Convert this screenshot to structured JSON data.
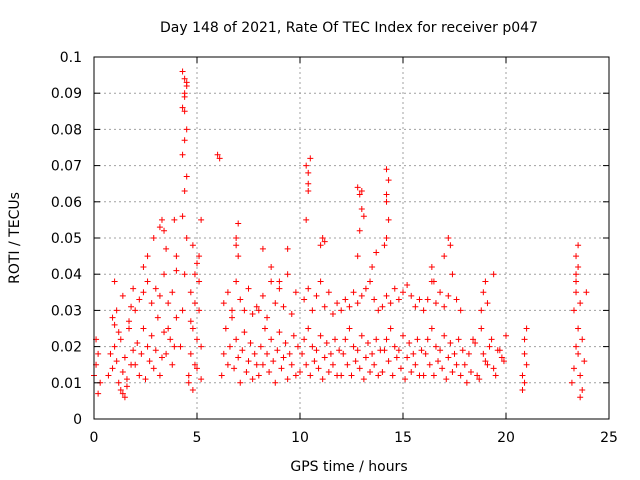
{
  "chart_data": {
    "type": "scatter",
    "title": "Day 148 of 2021, Rate Of TEC Index for receiver p047",
    "xlabel": "GPS time / hours",
    "ylabel": "ROTI / TECUs",
    "xlim": [
      0,
      25
    ],
    "ylim": [
      0,
      0.1
    ],
    "x_ticks": [
      "0",
      "5",
      "10",
      "15",
      "20",
      "25"
    ],
    "y_ticks": [
      "0",
      "0.01",
      "0.02",
      "0.03",
      "0.04",
      "0.05",
      "0.06",
      "0.07",
      "0.08",
      "0.09",
      "0.1"
    ],
    "x_tick_values": [
      0,
      5,
      10,
      15,
      20,
      25
    ],
    "y_tick_values": [
      0,
      0.01,
      0.02,
      0.03,
      0.04,
      0.05,
      0.06,
      0.07,
      0.08,
      0.09,
      0.1
    ],
    "grid": true,
    "marker": "plus",
    "marker_color": "#ff0000",
    "series": [
      {
        "x": [
          0.0,
          0.1,
          0.2,
          0.3,
          0.1,
          0.2,
          0.7,
          0.8,
          0.9,
          1.0,
          1.1,
          1.2,
          1.3,
          1.4,
          1.5,
          1.6,
          1.7,
          1.8,
          1.9,
          0.9,
          1.0,
          1.1,
          1.2,
          1.3,
          1.4,
          1.5,
          1.6,
          1.7,
          1.8,
          2.0,
          2.1,
          2.2,
          2.3,
          2.4,
          2.5,
          2.6,
          2.7,
          2.8,
          2.9,
          3.0,
          3.1,
          3.2,
          3.3,
          3.4,
          2.0,
          2.2,
          2.4,
          2.6,
          2.8,
          3.0,
          3.2,
          3.4,
          1.0,
          1.4,
          1.9,
          2.4,
          2.6,
          2.9,
          3.2,
          3.3,
          3.4,
          3.5,
          3.5,
          3.6,
          3.7,
          3.8,
          3.9,
          4.0,
          3.6,
          3.8,
          4.0,
          3.9,
          4.0,
          4.2,
          4.3,
          4.4,
          4.5,
          4.3,
          4.4,
          4.5,
          4.3,
          4.4,
          4.5,
          4.4,
          4.3,
          4.4,
          4.5,
          4.4,
          4.3,
          4.5,
          4.4,
          4.6,
          4.7,
          4.8,
          4.9,
          5.0,
          5.1,
          5.2,
          4.7,
          4.9,
          5.1,
          4.8,
          5.0,
          5.2,
          4.6,
          4.8,
          5.0,
          5.2,
          4.7,
          4.9,
          5.1,
          6.0,
          6.1,
          6.2,
          6.3,
          6.4,
          6.5,
          6.6,
          6.7,
          6.8,
          6.9,
          7.0,
          7.1,
          7.2,
          7.3,
          7.4,
          7.5,
          7.6,
          7.7,
          7.8,
          7.9,
          6.3,
          6.5,
          6.7,
          6.9,
          7.1,
          7.3,
          7.5,
          7.7,
          7.9,
          6.9,
          7.0,
          7.0,
          6.9,
          8.0,
          8.1,
          8.2,
          8.3,
          8.4,
          8.5,
          8.6,
          8.7,
          8.8,
          8.9,
          9.0,
          9.1,
          9.2,
          9.3,
          9.4,
          9.5,
          9.6,
          9.7,
          9.8,
          9.9,
          8.0,
          8.2,
          8.4,
          8.6,
          8.8,
          9.0,
          9.2,
          9.4,
          9.6,
          9.8,
          8.2,
          8.6,
          9.0,
          9.4,
          10.0,
          10.1,
          10.2,
          10.3,
          10.4,
          10.5,
          10.6,
          10.7,
          10.8,
          10.9,
          11.0,
          11.1,
          11.2,
          11.3,
          11.4,
          11.5,
          11.6,
          11.7,
          11.8,
          11.9,
          10.2,
          10.4,
          10.6,
          10.8,
          11.0,
          11.2,
          11.4,
          11.6,
          11.8,
          10.3,
          10.4,
          10.4,
          10.3,
          10.5,
          10.4,
          11.0,
          11.1,
          11.2,
          12.0,
          12.1,
          12.2,
          12.3,
          12.4,
          12.5,
          12.6,
          12.7,
          12.8,
          12.9,
          13.0,
          13.1,
          13.2,
          13.3,
          13.4,
          13.5,
          13.6,
          13.7,
          13.8,
          13.9,
          12.0,
          12.2,
          12.4,
          12.6,
          12.8,
          13.0,
          13.2,
          13.4,
          13.6,
          13.8,
          12.8,
          12.9,
          13.0,
          12.9,
          12.8,
          13.0,
          13.5,
          13.7,
          13.1,
          14.0,
          14.1,
          14.2,
          14.3,
          14.4,
          14.5,
          14.6,
          14.7,
          14.8,
          14.9,
          15.0,
          15.1,
          15.2,
          15.3,
          15.4,
          15.5,
          15.6,
          15.7,
          15.8,
          15.9,
          14.0,
          14.2,
          14.4,
          14.6,
          14.8,
          15.0,
          15.2,
          15.4,
          15.6,
          15.8,
          14.2,
          14.3,
          14.2,
          14.3,
          14.2,
          14.1,
          14.2,
          16.0,
          16.1,
          16.2,
          16.3,
          16.4,
          16.5,
          16.6,
          16.7,
          16.8,
          16.9,
          17.0,
          17.1,
          17.2,
          17.3,
          17.4,
          17.5,
          17.6,
          17.7,
          17.8,
          17.9,
          16.0,
          16.2,
          16.4,
          16.6,
          16.8,
          17.0,
          17.2,
          17.4,
          17.6,
          17.8,
          16.4,
          16.5,
          17.0,
          17.2,
          17.3,
          18.0,
          18.2,
          18.4,
          18.6,
          18.8,
          19.0,
          19.2,
          19.4,
          19.6,
          19.8,
          20.0,
          18.1,
          18.3,
          18.5,
          18.7,
          18.9,
          19.1,
          19.3,
          19.5,
          19.7,
          19.9,
          18.8,
          18.9,
          19.0,
          19.1,
          19.4,
          20.8,
          20.9,
          21.0,
          20.9,
          20.8,
          21.0,
          20.9,
          23.2,
          23.3,
          23.4,
          23.5,
          23.6,
          23.7,
          23.8,
          23.3,
          23.5,
          23.7,
          23.4,
          23.6,
          23.4,
          23.5,
          23.4,
          23.5,
          23.6,
          23.4,
          23.9
        ],
        "y": [
          0.012,
          0.015,
          0.018,
          0.01,
          0.022,
          0.007,
          0.012,
          0.018,
          0.014,
          0.02,
          0.016,
          0.01,
          0.022,
          0.013,
          0.017,
          0.011,
          0.025,
          0.015,
          0.019,
          0.028,
          0.026,
          0.03,
          0.024,
          0.008,
          0.007,
          0.006,
          0.009,
          0.027,
          0.031,
          0.015,
          0.021,
          0.012,
          0.018,
          0.025,
          0.011,
          0.02,
          0.016,
          0.023,
          0.014,
          0.019,
          0.028,
          0.012,
          0.017,
          0.024,
          0.03,
          0.033,
          0.035,
          0.038,
          0.032,
          0.036,
          0.034,
          0.04,
          0.038,
          0.034,
          0.036,
          0.042,
          0.045,
          0.05,
          0.053,
          0.055,
          0.052,
          0.047,
          0.018,
          0.025,
          0.022,
          0.015,
          0.02,
          0.028,
          0.032,
          0.035,
          0.041,
          0.055,
          0.045,
          0.02,
          0.03,
          0.04,
          0.05,
          0.056,
          0.063,
          0.067,
          0.073,
          0.077,
          0.08,
          0.085,
          0.086,
          0.089,
          0.092,
          0.094,
          0.096,
          0.093,
          0.09,
          0.012,
          0.018,
          0.025,
          0.015,
          0.022,
          0.03,
          0.02,
          0.035,
          0.04,
          0.045,
          0.048,
          0.043,
          0.055,
          0.01,
          0.008,
          0.014,
          0.011,
          0.027,
          0.032,
          0.038,
          0.073,
          0.072,
          0.012,
          0.018,
          0.025,
          0.015,
          0.02,
          0.03,
          0.014,
          0.022,
          0.017,
          0.01,
          0.019,
          0.024,
          0.013,
          0.016,
          0.021,
          0.011,
          0.018,
          0.015,
          0.032,
          0.035,
          0.028,
          0.038,
          0.033,
          0.03,
          0.036,
          0.029,
          0.031,
          0.05,
          0.054,
          0.045,
          0.048,
          0.012,
          0.02,
          0.015,
          0.025,
          0.018,
          0.013,
          0.022,
          0.016,
          0.01,
          0.019,
          0.024,
          0.014,
          0.017,
          0.021,
          0.011,
          0.018,
          0.015,
          0.023,
          0.012,
          0.02,
          0.03,
          0.034,
          0.028,
          0.038,
          0.032,
          0.036,
          0.031,
          0.04,
          0.029,
          0.035,
          0.047,
          0.042,
          0.038,
          0.047,
          0.013,
          0.018,
          0.022,
          0.015,
          0.025,
          0.012,
          0.02,
          0.016,
          0.019,
          0.014,
          0.023,
          0.011,
          0.017,
          0.021,
          0.013,
          0.018,
          0.015,
          0.022,
          0.012,
          0.019,
          0.033,
          0.036,
          0.03,
          0.034,
          0.038,
          0.031,
          0.035,
          0.029,
          0.032,
          0.055,
          0.063,
          0.068,
          0.07,
          0.072,
          0.065,
          0.048,
          0.05,
          0.049,
          0.012,
          0.018,
          0.022,
          0.015,
          0.025,
          0.012,
          0.02,
          0.016,
          0.019,
          0.014,
          0.023,
          0.011,
          0.017,
          0.021,
          0.013,
          0.018,
          0.015,
          0.022,
          0.012,
          0.019,
          0.03,
          0.033,
          0.031,
          0.035,
          0.032,
          0.034,
          0.036,
          0.038,
          0.033,
          0.03,
          0.045,
          0.052,
          0.058,
          0.062,
          0.064,
          0.063,
          0.042,
          0.046,
          0.056,
          0.013,
          0.019,
          0.022,
          0.016,
          0.025,
          0.012,
          0.02,
          0.017,
          0.019,
          0.014,
          0.023,
          0.011,
          0.017,
          0.021,
          0.013,
          0.018,
          0.015,
          0.022,
          0.012,
          0.019,
          0.031,
          0.034,
          0.032,
          0.036,
          0.033,
          0.035,
          0.037,
          0.034,
          0.031,
          0.033,
          0.05,
          0.055,
          0.06,
          0.066,
          0.069,
          0.048,
          0.062,
          0.012,
          0.018,
          0.022,
          0.015,
          0.025,
          0.012,
          0.02,
          0.016,
          0.019,
          0.014,
          0.023,
          0.011,
          0.017,
          0.021,
          0.013,
          0.018,
          0.015,
          0.022,
          0.012,
          0.019,
          0.03,
          0.033,
          0.038,
          0.032,
          0.035,
          0.031,
          0.034,
          0.04,
          0.033,
          0.03,
          0.042,
          0.038,
          0.045,
          0.05,
          0.048,
          0.015,
          0.018,
          0.022,
          0.012,
          0.025,
          0.016,
          0.02,
          0.014,
          0.019,
          0.017,
          0.023,
          0.01,
          0.013,
          0.021,
          0.011,
          0.018,
          0.015,
          0.022,
          0.012,
          0.019,
          0.016,
          0.03,
          0.035,
          0.038,
          0.032,
          0.04,
          0.012,
          0.018,
          0.025,
          0.022,
          0.008,
          0.015,
          0.01,
          0.01,
          0.014,
          0.02,
          0.025,
          0.012,
          0.008,
          0.016,
          0.03,
          0.018,
          0.022,
          0.035,
          0.006,
          0.04,
          0.042,
          0.045,
          0.048,
          0.032,
          0.038,
          0.035
        ]
      }
    ]
  }
}
